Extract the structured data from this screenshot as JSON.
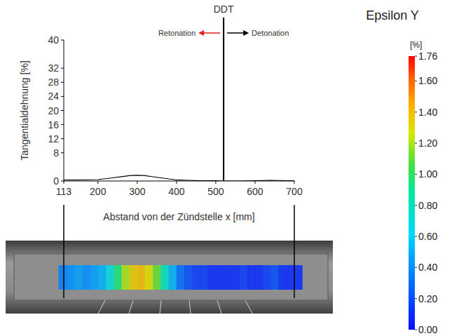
{
  "chart_data": {
    "type": "line",
    "x_label": "Abstand von der Zündstelle x [mm]",
    "y_label": "Tangentialdehnung [%]",
    "x": [
      113,
      150,
      200,
      230,
      260,
      280,
      300,
      320,
      340,
      360,
      380,
      400,
      430,
      460,
      500,
      520,
      560,
      600,
      640,
      680,
      700
    ],
    "values": [
      0.3,
      0.3,
      0.4,
      0.8,
      1.2,
      1.5,
      1.6,
      1.5,
      1.2,
      0.9,
      0.6,
      0.3,
      0.2,
      0.1,
      0.1,
      0.0,
      0.0,
      0.1,
      0.2,
      0.1,
      0.1
    ],
    "color": "#000000",
    "xlim": [
      113,
      700
    ],
    "xticks": [
      113,
      200,
      300,
      400,
      500,
      600,
      700
    ],
    "ylim": [
      0,
      40
    ],
    "yticks": [
      0,
      8,
      12,
      16,
      20,
      24,
      28,
      32,
      40
    ],
    "grid": false,
    "vline": {
      "x": 520,
      "label": "DDT"
    },
    "annotations": [
      {
        "text": "Retonation",
        "color": "#e0201b"
      },
      {
        "text": "Detonation",
        "color": "#000000"
      }
    ],
    "strain_field": {
      "x": [
        110,
        130,
        150,
        170,
        190,
        210,
        230,
        250,
        270,
        290,
        310,
        330,
        350,
        370,
        390,
        410,
        430,
        450,
        470,
        490,
        510,
        530,
        550,
        570,
        590,
        610,
        630,
        650,
        670,
        690,
        710
      ],
      "values": [
        0.35,
        0.4,
        0.45,
        0.4,
        0.45,
        0.5,
        0.7,
        0.95,
        1.2,
        1.35,
        1.4,
        1.3,
        1.1,
        0.8,
        0.5,
        0.3,
        0.2,
        0.15,
        0.15,
        0.1,
        0.1,
        0.1,
        0.1,
        0.15,
        0.1,
        0.1,
        0.15,
        0.2,
        0.1,
        0.1,
        0.1
      ]
    },
    "colorbar": {
      "title": "Epsilon Y",
      "unit": "[%]",
      "range": [
        0,
        1.76
      ],
      "ticks": [
        1.76,
        {
          "value": 1.6,
          "label": "1.60"
        },
        {
          "value": 1.4,
          "label": "1.40"
        },
        {
          "value": 1.2,
          "label": "1.20"
        },
        {
          "value": 1.0,
          "label": "1.00"
        },
        {
          "value": 0.8,
          "label": "0.80"
        },
        {
          "value": 0.6,
          "label": "0.60"
        },
        {
          "value": 0.4,
          "label": "0.40"
        },
        {
          "value": 0.2,
          "label": "0.20"
        },
        {
          "value": 0,
          "label": "0.00"
        }
      ]
    }
  }
}
